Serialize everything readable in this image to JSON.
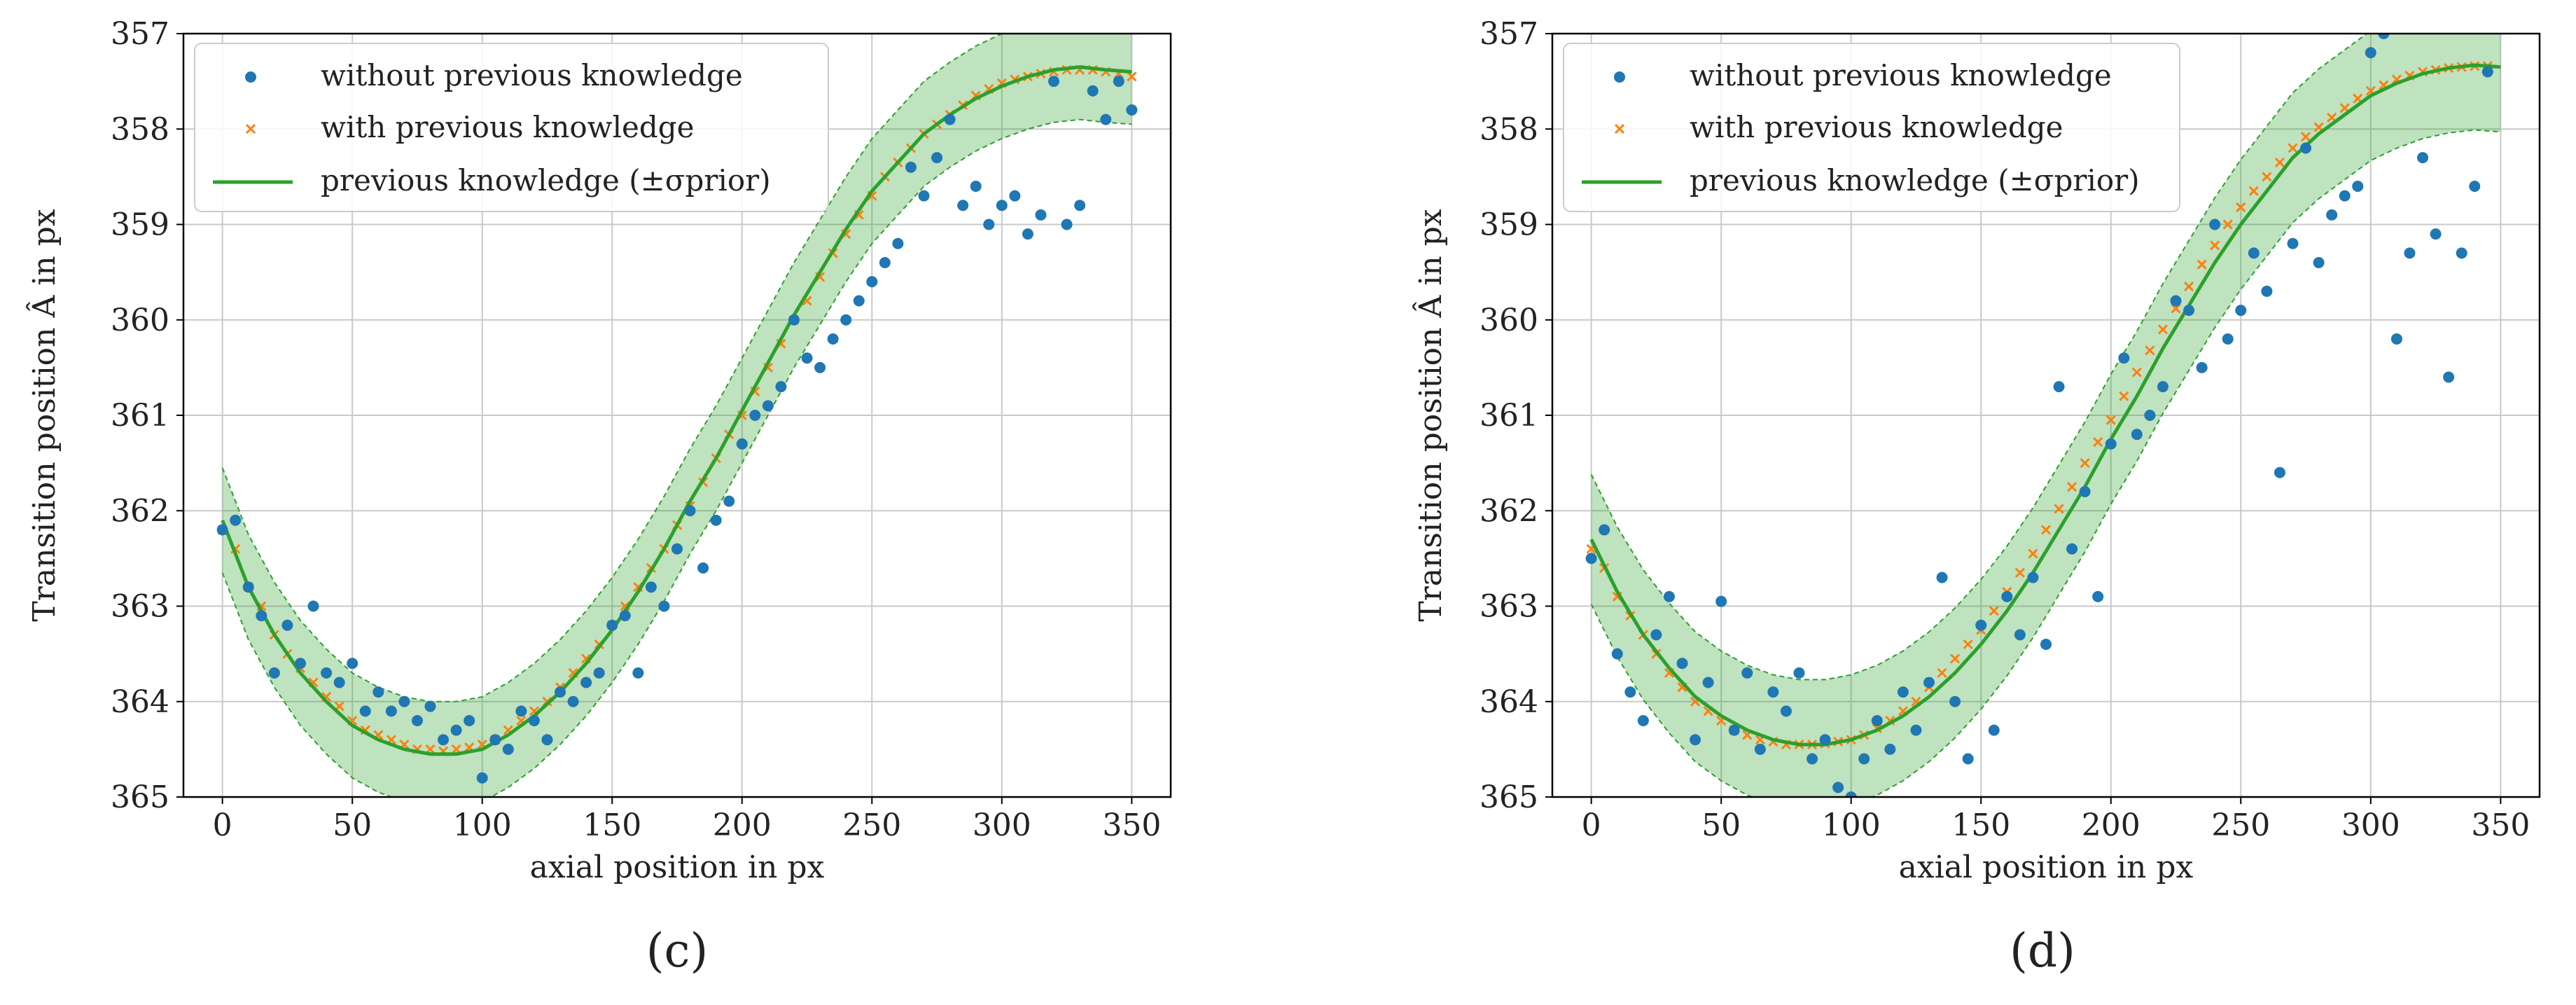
{
  "chart_data": [
    {
      "panel": "(c)",
      "type": "scatter",
      "xlabel": "axial position in px",
      "ylabel": "Transition position Â in px",
      "xlim": [
        -15,
        365
      ],
      "ylim": [
        365,
        357
      ],
      "xticks": [
        0,
        50,
        100,
        150,
        200,
        250,
        300,
        350
      ],
      "yticks": [
        357,
        358,
        359,
        360,
        361,
        362,
        363,
        364,
        365
      ],
      "grid": true,
      "legend_position": "top-left",
      "prior_sigma": 0.55,
      "prior_curve": {
        "x": [
          0,
          10,
          20,
          30,
          40,
          50,
          60,
          70,
          80,
          90,
          100,
          110,
          120,
          130,
          140,
          150,
          160,
          170,
          180,
          190,
          200,
          210,
          220,
          230,
          240,
          250,
          260,
          270,
          280,
          290,
          300,
          310,
          320,
          330,
          340,
          350
        ],
        "y": [
          362.1,
          362.8,
          363.3,
          363.7,
          364.0,
          364.25,
          364.4,
          364.5,
          364.55,
          364.55,
          364.5,
          364.35,
          364.15,
          363.9,
          363.6,
          363.25,
          362.85,
          362.4,
          361.9,
          361.45,
          360.95,
          360.45,
          359.95,
          359.5,
          359.05,
          358.65,
          358.35,
          358.05,
          357.85,
          357.68,
          357.55,
          357.45,
          357.38,
          357.35,
          357.38,
          357.4
        ]
      },
      "series": [
        {
          "name": "without previous knowledge",
          "marker": "dot",
          "color": "#1f77b4",
          "x": [
            0,
            5,
            10,
            15,
            20,
            25,
            30,
            35,
            40,
            45,
            50,
            55,
            60,
            65,
            70,
            75,
            80,
            85,
            90,
            95,
            100,
            105,
            110,
            115,
            120,
            125,
            130,
            135,
            140,
            145,
            150,
            155,
            160,
            165,
            170,
            175,
            180,
            185,
            190,
            195,
            200,
            205,
            210,
            215,
            220,
            225,
            230,
            235,
            240,
            245,
            250,
            255,
            260,
            265,
            270,
            275,
            280,
            285,
            290,
            295,
            300,
            305,
            310,
            315,
            320,
            325,
            330,
            335,
            340,
            345,
            350
          ],
          "y": [
            362.2,
            362.1,
            362.8,
            363.1,
            363.7,
            363.2,
            363.6,
            363.0,
            363.7,
            363.8,
            363.6,
            364.1,
            363.9,
            364.1,
            364.0,
            364.2,
            364.05,
            364.4,
            364.3,
            364.2,
            364.8,
            364.4,
            364.5,
            364.1,
            364.2,
            364.4,
            363.9,
            364.0,
            363.8,
            363.7,
            363.2,
            363.1,
            363.7,
            362.8,
            363.0,
            362.4,
            362.0,
            362.6,
            362.1,
            361.9,
            361.3,
            361.0,
            360.9,
            360.7,
            360.0,
            360.4,
            360.5,
            360.2,
            360.0,
            359.8,
            359.6,
            359.4,
            359.2,
            358.4,
            358.7,
            358.3,
            357.9,
            358.8,
            358.6,
            359.0,
            358.8,
            358.7,
            359.1,
            358.9,
            357.5,
            359.0,
            358.8,
            357.6,
            357.9,
            357.5,
            357.8
          ]
        },
        {
          "name": "with previous knowledge",
          "marker": "x",
          "color": "#ff7f0e",
          "x": [
            0,
            5,
            10,
            15,
            20,
            25,
            30,
            35,
            40,
            45,
            50,
            55,
            60,
            65,
            70,
            75,
            80,
            85,
            90,
            95,
            100,
            105,
            110,
            115,
            120,
            125,
            130,
            135,
            140,
            145,
            150,
            155,
            160,
            165,
            170,
            175,
            180,
            185,
            190,
            195,
            200,
            205,
            210,
            215,
            220,
            225,
            230,
            235,
            240,
            245,
            250,
            255,
            260,
            265,
            270,
            275,
            280,
            285,
            290,
            295,
            300,
            305,
            310,
            315,
            320,
            325,
            330,
            335,
            340,
            345,
            350
          ],
          "y": [
            362.2,
            362.4,
            362.8,
            363.0,
            363.3,
            363.5,
            363.65,
            363.8,
            363.95,
            364.05,
            364.2,
            364.3,
            364.35,
            364.4,
            364.45,
            364.5,
            364.5,
            364.52,
            364.5,
            364.48,
            364.45,
            364.4,
            364.3,
            364.2,
            364.1,
            364.0,
            363.85,
            363.7,
            363.55,
            363.4,
            363.2,
            363.0,
            362.8,
            362.6,
            362.4,
            362.15,
            361.95,
            361.7,
            361.45,
            361.2,
            361.0,
            360.75,
            360.5,
            360.25,
            360.0,
            359.8,
            359.55,
            359.3,
            359.1,
            358.9,
            358.7,
            358.5,
            358.35,
            358.2,
            358.05,
            357.95,
            357.85,
            357.75,
            357.65,
            357.58,
            357.52,
            357.48,
            357.45,
            357.42,
            357.4,
            357.38,
            357.38,
            357.38,
            357.4,
            357.42,
            357.45
          ]
        },
        {
          "name": "previous knowledge (±σprior)",
          "marker": "line",
          "color": "#2ca02c"
        }
      ]
    },
    {
      "panel": "(d)",
      "type": "scatter",
      "xlabel": "axial position in px",
      "ylabel": "Transition position Â in px",
      "xlim": [
        -15,
        365
      ],
      "ylim": [
        365,
        357
      ],
      "xticks": [
        0,
        50,
        100,
        150,
        200,
        250,
        300,
        350
      ],
      "yticks": [
        357,
        358,
        359,
        360,
        361,
        362,
        363,
        364,
        365
      ],
      "grid": true,
      "legend_position": "top-left",
      "prior_sigma": 0.68,
      "prior_curve": {
        "x": [
          0,
          10,
          20,
          30,
          40,
          50,
          60,
          70,
          80,
          90,
          100,
          110,
          120,
          130,
          140,
          150,
          160,
          170,
          180,
          190,
          200,
          210,
          220,
          230,
          240,
          250,
          260,
          270,
          280,
          290,
          300,
          310,
          320,
          330,
          340,
          350
        ],
        "y": [
          362.3,
          362.85,
          363.3,
          363.65,
          363.95,
          364.15,
          364.3,
          364.4,
          364.45,
          364.45,
          364.4,
          364.3,
          364.15,
          363.95,
          363.7,
          363.4,
          363.05,
          362.65,
          362.2,
          361.75,
          361.25,
          360.8,
          360.3,
          359.85,
          359.4,
          359.0,
          358.65,
          358.3,
          358.05,
          357.85,
          357.65,
          357.52,
          357.42,
          357.36,
          357.33,
          357.35
        ]
      },
      "series": [
        {
          "name": "without previous knowledge",
          "marker": "dot",
          "color": "#1f77b4",
          "x": [
            0,
            5,
            10,
            15,
            20,
            25,
            30,
            35,
            40,
            45,
            50,
            55,
            60,
            65,
            70,
            75,
            80,
            85,
            90,
            95,
            100,
            105,
            110,
            115,
            120,
            125,
            130,
            135,
            140,
            145,
            150,
            155,
            160,
            165,
            170,
            175,
            180,
            185,
            190,
            195,
            200,
            205,
            210,
            215,
            220,
            225,
            230,
            235,
            240,
            245,
            250,
            255,
            260,
            265,
            270,
            275,
            280,
            285,
            290,
            295,
            300,
            305,
            310,
            315,
            320,
            325,
            330,
            335,
            340,
            345
          ],
          "y": [
            362.5,
            362.2,
            363.5,
            363.9,
            364.2,
            363.3,
            362.9,
            363.6,
            364.4,
            363.8,
            362.95,
            364.3,
            363.7,
            364.5,
            363.9,
            364.1,
            363.7,
            364.6,
            364.4,
            364.9,
            365.0,
            364.6,
            364.2,
            364.5,
            363.9,
            364.3,
            363.8,
            362.7,
            364.0,
            364.6,
            363.2,
            364.3,
            362.9,
            363.3,
            362.7,
            363.4,
            360.7,
            362.4,
            361.8,
            362.9,
            361.3,
            360.4,
            361.2,
            361.0,
            360.7,
            359.8,
            359.9,
            360.5,
            359.0,
            360.2,
            359.9,
            359.3,
            359.7,
            361.6,
            359.2,
            358.2,
            359.4,
            358.9,
            358.7,
            358.6,
            357.2,
            357.0,
            360.2,
            359.3,
            358.3,
            359.1,
            360.6,
            359.3,
            358.6,
            357.4
          ]
        },
        {
          "name": "with previous knowledge",
          "marker": "x",
          "color": "#ff7f0e",
          "x": [
            0,
            5,
            10,
            15,
            20,
            25,
            30,
            35,
            40,
            45,
            50,
            55,
            60,
            65,
            70,
            75,
            80,
            85,
            90,
            95,
            100,
            105,
            110,
            115,
            120,
            125,
            130,
            135,
            140,
            145,
            150,
            155,
            160,
            165,
            170,
            175,
            180,
            185,
            190,
            195,
            200,
            205,
            210,
            215,
            220,
            225,
            230,
            235,
            240,
            245,
            250,
            255,
            260,
            265,
            270,
            275,
            280,
            285,
            290,
            295,
            300,
            305,
            310,
            315,
            320,
            325,
            330,
            335,
            340,
            345
          ],
          "y": [
            362.4,
            362.6,
            362.9,
            363.1,
            363.3,
            363.5,
            363.7,
            363.85,
            364.0,
            364.1,
            364.2,
            364.3,
            364.35,
            364.4,
            364.42,
            364.45,
            364.45,
            364.45,
            364.44,
            364.42,
            364.4,
            364.35,
            364.28,
            364.2,
            364.1,
            364.0,
            363.85,
            363.7,
            363.55,
            363.4,
            363.25,
            363.05,
            362.85,
            362.65,
            362.45,
            362.2,
            361.98,
            361.75,
            361.5,
            361.28,
            361.05,
            360.8,
            360.55,
            360.32,
            360.1,
            359.88,
            359.65,
            359.42,
            359.22,
            359.0,
            358.82,
            358.65,
            358.5,
            358.35,
            358.2,
            358.08,
            357.98,
            357.88,
            357.78,
            357.68,
            357.6,
            357.54,
            357.48,
            357.44,
            357.4,
            357.38,
            357.36,
            357.35,
            357.34,
            357.34
          ]
        },
        {
          "name": "previous knowledge (±σprior)",
          "marker": "line",
          "color": "#2ca02c"
        }
      ]
    }
  ]
}
